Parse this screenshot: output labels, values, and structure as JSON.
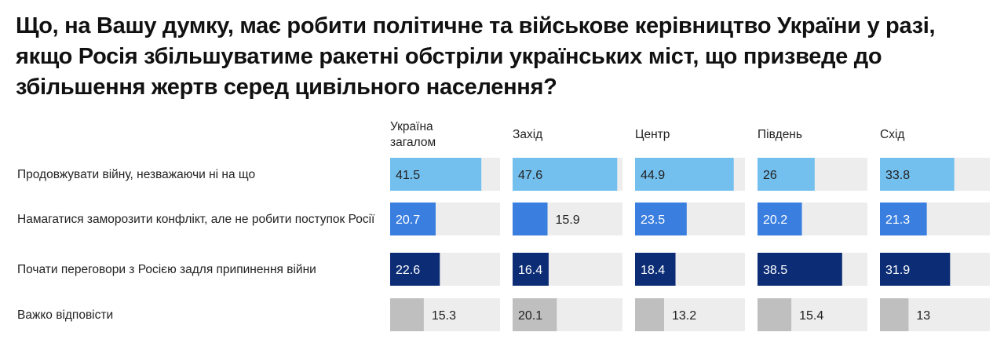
{
  "chart_data": {
    "type": "bar",
    "title": "Що, на Вашу думку, має робити політичне та військове керівництво України у разі, якщо Росія збільшуватиме ракетні обстріли українських міст, що призведе до збільшення жертв серед цивільного населення?",
    "columns": [
      "Україна загалом",
      "Захід",
      "Центр",
      "Південь",
      "Схід"
    ],
    "categories": [
      "Продовжувати війну, незважаючи ні на що",
      "Намагатися заморозити конфлікт, але не робити поступок Росії",
      "Почати переговори з Росією задля припинення війни",
      "Важко відповісти"
    ],
    "values": [
      [
        41.5,
        47.6,
        44.9,
        26,
        33.8
      ],
      [
        20.7,
        15.9,
        23.5,
        20.2,
        21.3
      ],
      [
        22.6,
        16.4,
        18.4,
        38.5,
        31.9
      ],
      [
        15.3,
        20.1,
        13.2,
        15.4,
        13
      ]
    ],
    "value_labels": [
      [
        "41.5",
        "47.6",
        "44.9",
        "26",
        "33.8"
      ],
      [
        "20.7",
        "15.9",
        "23.5",
        "20.2",
        "21.3"
      ],
      [
        "22.6",
        "16.4",
        "18.4",
        "38.5",
        "31.9"
      ],
      [
        "15.3",
        "20.1",
        "13.2",
        "15.4",
        "13"
      ]
    ],
    "xlim": [
      0,
      50
    ],
    "colors": [
      "#73bfee",
      "#3a7fe0",
      "#0c2d75",
      "#bfbfbf"
    ],
    "track_color": "#ededed",
    "grid": false,
    "legend": "none"
  }
}
